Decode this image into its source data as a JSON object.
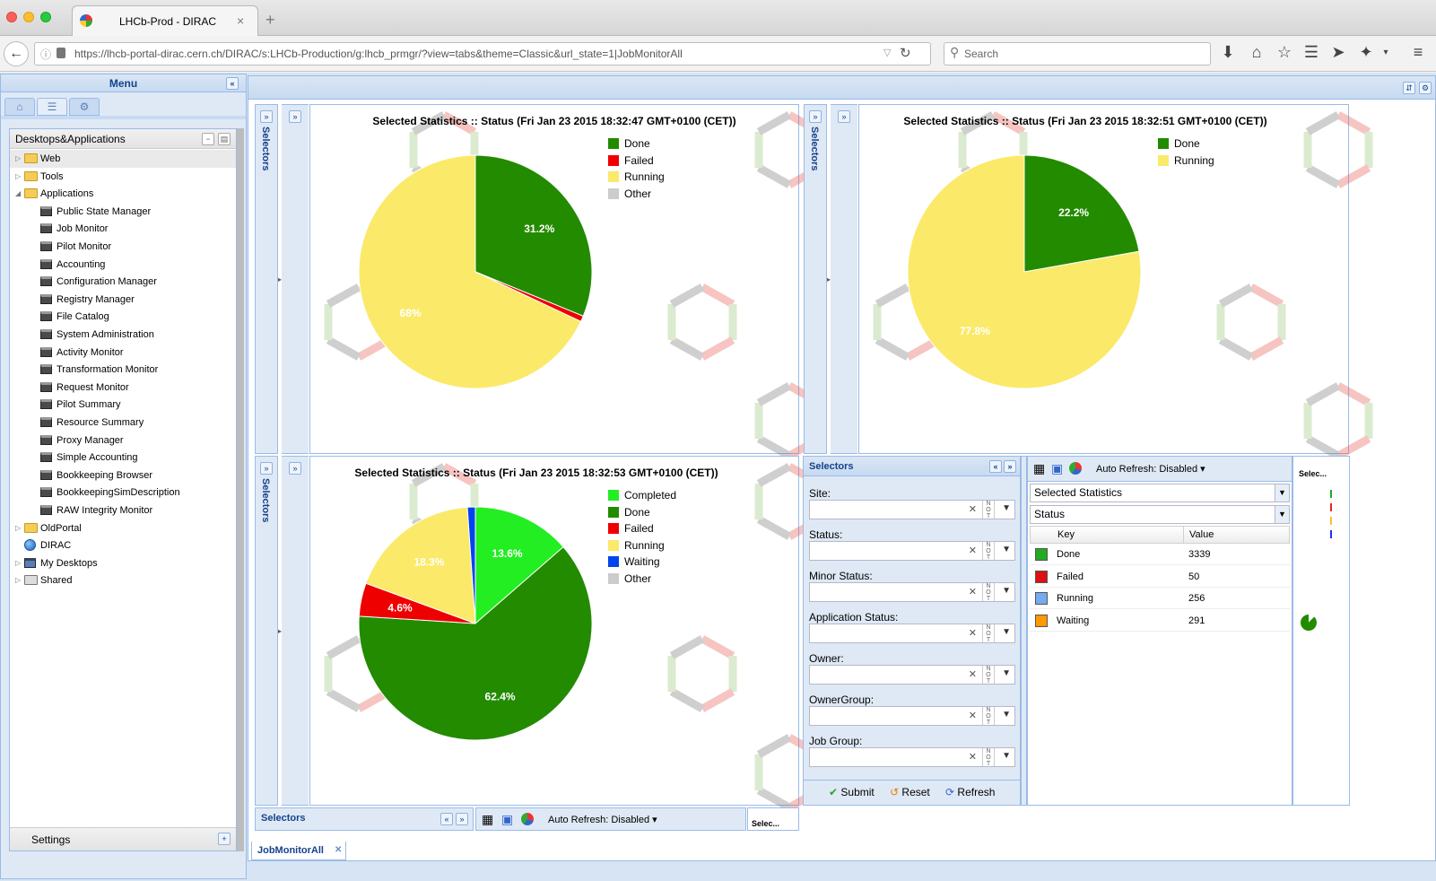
{
  "browser": {
    "tab_title": "LHCb-Prod - DIRAC",
    "url": "https://lhcb-portal-dirac.cern.ch/DIRAC/s:LHCb-Production/g:lhcb_prmgr/?view=tabs&theme=Classic&url_state=1|JobMonitorAll",
    "search_placeholder": "Search"
  },
  "menu": {
    "title": "Menu",
    "tree_title": "Desktops&Applications",
    "settings_label": "Settings",
    "items": [
      {
        "label": "Web",
        "kind": "folder",
        "level": 0,
        "expander": "closed"
      },
      {
        "label": "Tools",
        "kind": "folder",
        "level": 0,
        "expander": "closed"
      },
      {
        "label": "Applications",
        "kind": "folder-open",
        "level": 0,
        "expander": "open"
      },
      {
        "label": "Public State Manager",
        "kind": "app",
        "level": 1
      },
      {
        "label": "Job Monitor",
        "kind": "app",
        "level": 1
      },
      {
        "label": "Pilot Monitor",
        "kind": "app",
        "level": 1
      },
      {
        "label": "Accounting",
        "kind": "app",
        "level": 1
      },
      {
        "label": "Configuration Manager",
        "kind": "app",
        "level": 1
      },
      {
        "label": "Registry Manager",
        "kind": "app",
        "level": 1
      },
      {
        "label": "File Catalog",
        "kind": "app",
        "level": 1
      },
      {
        "label": "System Administration",
        "kind": "app",
        "level": 1
      },
      {
        "label": "Activity Monitor",
        "kind": "app",
        "level": 1
      },
      {
        "label": "Transformation Monitor",
        "kind": "app",
        "level": 1
      },
      {
        "label": "Request Monitor",
        "kind": "app",
        "level": 1
      },
      {
        "label": "Pilot Summary",
        "kind": "app",
        "level": 1
      },
      {
        "label": "Resource Summary",
        "kind": "app",
        "level": 1
      },
      {
        "label": "Proxy Manager",
        "kind": "app",
        "level": 1
      },
      {
        "label": "Simple Accounting",
        "kind": "app",
        "level": 1
      },
      {
        "label": "Bookkeeping Browser",
        "kind": "app",
        "level": 1
      },
      {
        "label": "BookkeepingSimDescription",
        "kind": "app",
        "level": 1
      },
      {
        "label": "RAW Integrity Monitor",
        "kind": "app",
        "level": 1
      },
      {
        "label": "OldPortal",
        "kind": "folder",
        "level": 0,
        "expander": "closed"
      },
      {
        "label": "DIRAC",
        "kind": "globe",
        "level": 0
      },
      {
        "label": "My Desktops",
        "kind": "desktop",
        "level": 0,
        "expander": "closed"
      },
      {
        "label": "Shared",
        "kind": "shared",
        "level": 0,
        "expander": "closed"
      }
    ]
  },
  "selectors_label": "Selectors",
  "colors": {
    "Done": "#228b00",
    "Failed": "#ee0000",
    "Running": "#fbe969",
    "Other": "#cccccc",
    "Completed": "#22ee22",
    "Waiting": "#0044ee"
  },
  "charts": [
    {
      "title": "Selected Statistics :: Status (Fri Jan 23 2015 18:32:47 GMT+0100 (CET))",
      "legend": [
        "Done",
        "Failed",
        "Running",
        "Other"
      ],
      "slices": [
        {
          "name": "Done",
          "value": 31.2,
          "label": "31.2%"
        },
        {
          "name": "Failed",
          "value": 0.8,
          "label": ""
        },
        {
          "name": "Running",
          "value": 68,
          "label": "68%"
        }
      ]
    },
    {
      "title": "Selected Statistics :: Status (Fri Jan 23 2015 18:32:51 GMT+0100 (CET))",
      "legend": [
        "Done",
        "Running"
      ],
      "slices": [
        {
          "name": "Done",
          "value": 22.2,
          "label": "22.2%"
        },
        {
          "name": "Running",
          "value": 77.8,
          "label": "77.8%"
        }
      ]
    },
    {
      "title": "Selected Statistics :: Status (Fri Jan 23 2015 18:32:53 GMT+0100 (CET))",
      "legend": [
        "Completed",
        "Done",
        "Failed",
        "Running",
        "Waiting",
        "Other"
      ],
      "slices": [
        {
          "name": "Completed",
          "value": 13.6,
          "label": "13.6%"
        },
        {
          "name": "Done",
          "value": 62.4,
          "label": "62.4%"
        },
        {
          "name": "Failed",
          "value": 4.6,
          "label": "4.6%"
        },
        {
          "name": "Running",
          "value": 18.3,
          "label": "18.3%"
        },
        {
          "name": "Waiting",
          "value": 1.1,
          "label": ""
        }
      ]
    }
  ],
  "chart_data": [
    {
      "type": "pie",
      "title": "Selected Statistics :: Status (Fri Jan 23 2015 18:32:47 GMT+0100 (CET))",
      "categories": [
        "Done",
        "Failed",
        "Running"
      ],
      "values": [
        31.2,
        0.8,
        68
      ],
      "legend_placement": "top-right"
    },
    {
      "type": "pie",
      "title": "Selected Statistics :: Status (Fri Jan 23 2015 18:32:51 GMT+0100 (CET))",
      "categories": [
        "Done",
        "Running"
      ],
      "values": [
        22.2,
        77.8
      ],
      "legend_placement": "top-right"
    },
    {
      "type": "pie",
      "title": "Selected Statistics :: Status (Fri Jan 23 2015 18:32:53 GMT+0100 (CET))",
      "categories": [
        "Completed",
        "Done",
        "Failed",
        "Running",
        "Waiting"
      ],
      "values": [
        13.6,
        62.4,
        4.6,
        18.3,
        1.1
      ],
      "legend_placement": "top-right"
    }
  ],
  "selector_form": {
    "fields": [
      "Site:",
      "Status:",
      "Minor Status:",
      "Application Status:",
      "Owner:",
      "OwnerGroup:",
      "Job Group:"
    ],
    "not_label": "NOT",
    "submit": "Submit",
    "reset": "Reset",
    "refresh": "Refresh"
  },
  "stats": {
    "auto_refresh": "Auto Refresh: Disabled",
    "source_combo": "Selected Statistics",
    "category_combo": "Status",
    "col_key": "Key",
    "col_value": "Value",
    "rows": [
      {
        "key": "Done",
        "value": "3339",
        "color": "#22aa22"
      },
      {
        "key": "Failed",
        "value": "50",
        "color": "#dd1111"
      },
      {
        "key": "Running",
        "value": "256",
        "color": "#77aaee"
      },
      {
        "key": "Waiting",
        "value": "291",
        "color": "#ff9900"
      }
    ],
    "collapsed_label": "Selec..."
  },
  "bottom_bar": {
    "auto_refresh": "Auto Refresh: Disabled",
    "collapsed_label": "Selec..."
  },
  "bottom_tab": "JobMonitorAll"
}
